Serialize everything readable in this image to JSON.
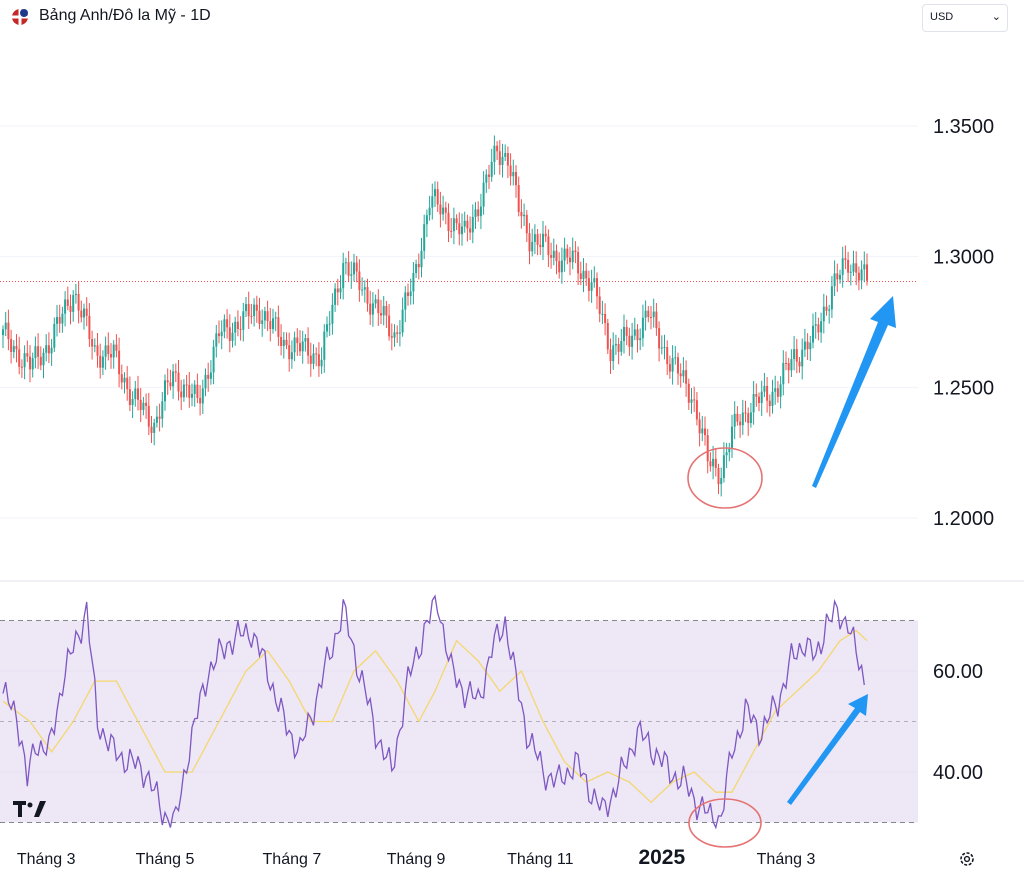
{
  "header": {
    "title": "Bảng Anh/Đô la Mỹ - 1D",
    "currency": "USD",
    "flag_icon": "gbp-usd-flag-icon",
    "chevron_icon": "chevron-down-icon"
  },
  "footer": {
    "settings_icon": "gear-icon",
    "logo_icon": "tradingview-logo-icon"
  },
  "colors": {
    "up": "#26a69a",
    "down": "#ef5350",
    "rsi": "#7e57c2",
    "rsi_ma": "#f5d76e",
    "rsi_band": "#ede7f6",
    "current_price_line": "#ef5350",
    "arrow": "#2196f3",
    "highlight_circle": "#e57373"
  },
  "chart_data": [
    {
      "type": "candlestick",
      "title": "Bảng Anh/Đô la Mỹ - 1D",
      "interval": "1D",
      "y_ticks": [
        "1.3500",
        "1.3000",
        "1.2500",
        "1.2000"
      ],
      "y_tick_values": [
        1.35,
        1.3,
        1.25,
        1.2
      ],
      "ylim": [
        1.18,
        1.375
      ],
      "current_price": 1.2905,
      "x_ticks": [
        "Tháng 3",
        "Tháng 5",
        "Tháng 7",
        "Tháng 9",
        "Tháng 11",
        "2025",
        "Tháng 3"
      ],
      "x_tick_index": [
        16,
        60,
        107,
        153,
        199,
        244,
        290
      ],
      "close_anchors": [
        [
          0,
          1.27
        ],
        [
          10,
          1.258
        ],
        [
          18,
          1.268
        ],
        [
          26,
          1.287
        ],
        [
          34,
          1.264
        ],
        [
          41,
          1.262
        ],
        [
          48,
          1.246
        ],
        [
          56,
          1.236
        ],
        [
          63,
          1.255
        ],
        [
          72,
          1.244
        ],
        [
          80,
          1.27
        ],
        [
          95,
          1.28
        ],
        [
          104,
          1.267
        ],
        [
          118,
          1.262
        ],
        [
          126,
          1.298
        ],
        [
          135,
          1.285
        ],
        [
          145,
          1.27
        ],
        [
          152,
          1.29
        ],
        [
          158,
          1.322
        ],
        [
          165,
          1.315
        ],
        [
          171,
          1.308
        ],
        [
          178,
          1.325
        ],
        [
          183,
          1.341
        ],
        [
          187,
          1.338
        ],
        [
          191,
          1.318
        ],
        [
          195,
          1.308
        ],
        [
          205,
          1.3
        ],
        [
          212,
          1.298
        ],
        [
          218,
          1.29
        ],
        [
          225,
          1.265
        ],
        [
          232,
          1.268
        ],
        [
          239,
          1.278
        ],
        [
          247,
          1.26
        ],
        [
          255,
          1.248
        ],
        [
          261,
          1.222
        ],
        [
          266,
          1.218
        ],
        [
          272,
          1.238
        ],
        [
          280,
          1.245
        ],
        [
          287,
          1.25
        ],
        [
          293,
          1.262
        ],
        [
          300,
          1.268
        ],
        [
          307,
          1.288
        ],
        [
          313,
          1.298
        ],
        [
          317,
          1.295
        ],
        [
          320,
          1.29
        ]
      ],
      "annotations": [
        "low-circle",
        "up-arrow"
      ]
    },
    {
      "type": "line",
      "indicator": "RSI",
      "y_ticks": [
        "60.00",
        "40.00"
      ],
      "y_tick_values": [
        60,
        40
      ],
      "bands": [
        30,
        50,
        70
      ],
      "ylim": [
        28,
        75
      ],
      "rsi_anchors": [
        [
          0,
          55
        ],
        [
          5,
          52
        ],
        [
          9,
          38
        ],
        [
          12,
          46
        ],
        [
          17,
          44
        ],
        [
          22,
          58
        ],
        [
          27,
          66
        ],
        [
          31,
          72
        ],
        [
          35,
          50
        ],
        [
          41,
          44
        ],
        [
          47,
          42
        ],
        [
          53,
          40
        ],
        [
          59,
          32
        ],
        [
          64,
          30
        ],
        [
          69,
          45
        ],
        [
          76,
          60
        ],
        [
          84,
          66
        ],
        [
          92,
          68
        ],
        [
          98,
          60
        ],
        [
          104,
          50
        ],
        [
          110,
          44
        ],
        [
          118,
          58
        ],
        [
          126,
          72
        ],
        [
          132,
          60
        ],
        [
          138,
          48
        ],
        [
          144,
          40
        ],
        [
          150,
          58
        ],
        [
          156,
          68
        ],
        [
          161,
          74
        ],
        [
          166,
          60
        ],
        [
          171,
          56
        ],
        [
          176,
          54
        ],
        [
          181,
          64
        ],
        [
          186,
          70
        ],
        [
          190,
          58
        ],
        [
          194,
          48
        ],
        [
          200,
          40
        ],
        [
          206,
          38
        ],
        [
          212,
          42
        ],
        [
          218,
          36
        ],
        [
          222,
          32
        ],
        [
          228,
          38
        ],
        [
          235,
          48
        ],
        [
          240,
          45
        ],
        [
          247,
          40
        ],
        [
          252,
          38
        ],
        [
          257,
          34
        ],
        [
          262,
          31
        ],
        [
          266,
          31
        ],
        [
          270,
          44
        ],
        [
          275,
          52
        ],
        [
          281,
          48
        ],
        [
          287,
          54
        ],
        [
          292,
          62
        ],
        [
          297,
          66
        ],
        [
          301,
          62
        ],
        [
          305,
          70
        ],
        [
          309,
          71
        ],
        [
          313,
          70
        ],
        [
          316,
          63
        ],
        [
          319,
          58
        ]
      ],
      "rsi_ma_anchors": [
        [
          0,
          54
        ],
        [
          10,
          50
        ],
        [
          18,
          44
        ],
        [
          26,
          50
        ],
        [
          34,
          58
        ],
        [
          42,
          58
        ],
        [
          52,
          48
        ],
        [
          60,
          40
        ],
        [
          70,
          40
        ],
        [
          80,
          50
        ],
        [
          90,
          60
        ],
        [
          98,
          64
        ],
        [
          106,
          58
        ],
        [
          114,
          50
        ],
        [
          122,
          50
        ],
        [
          130,
          60
        ],
        [
          138,
          64
        ],
        [
          146,
          58
        ],
        [
          154,
          50
        ],
        [
          160,
          56
        ],
        [
          168,
          66
        ],
        [
          176,
          62
        ],
        [
          184,
          56
        ],
        [
          192,
          60
        ],
        [
          200,
          50
        ],
        [
          208,
          42
        ],
        [
          216,
          38
        ],
        [
          224,
          40
        ],
        [
          232,
          38
        ],
        [
          240,
          34
        ],
        [
          248,
          38
        ],
        [
          256,
          40
        ],
        [
          264,
          36
        ],
        [
          270,
          36
        ],
        [
          278,
          44
        ],
        [
          286,
          52
        ],
        [
          294,
          56
        ],
        [
          302,
          60
        ],
        [
          310,
          66
        ],
        [
          316,
          68
        ],
        [
          320,
          66
        ]
      ],
      "annotations": [
        "low-circle",
        "up-arrow"
      ]
    }
  ]
}
